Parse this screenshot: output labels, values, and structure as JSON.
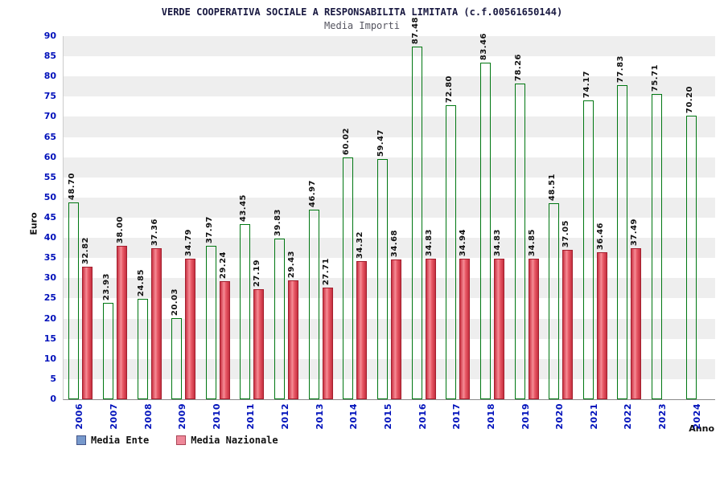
{
  "chart_data": {
    "type": "bar",
    "title": "VERDE COOPERATIVA SOCIALE A RESPONSABILITA LIMITATA (c.f.00561650144)",
    "subtitle": "Media Importi",
    "ylabel": "Euro",
    "xlabel": "Anno",
    "ylim": [
      0,
      90
    ],
    "ytick_step": 5,
    "grid": "horizontal-bands",
    "legend_position": "bottom-left",
    "categories": [
      "2006",
      "2007",
      "2008",
      "2009",
      "2010",
      "2011",
      "2012",
      "2013",
      "2014",
      "2015",
      "2016",
      "2017",
      "2018",
      "2019",
      "2020",
      "2021",
      "2022",
      "2023",
      "2024"
    ],
    "series": [
      {
        "name": "Media Ente",
        "bar_color": "#00c31f",
        "bar_edge_color": "#007712",
        "legend_swatch_color": "#7799cc",
        "legend_swatch_edge_color": "#445588",
        "values": [
          48.7,
          23.93,
          24.85,
          20.03,
          37.97,
          43.45,
          39.83,
          46.97,
          60.02,
          59.47,
          87.48,
          72.8,
          83.46,
          78.26,
          48.51,
          74.17,
          77.83,
          75.71,
          70.2
        ]
      },
      {
        "name": "Media Nazionale",
        "bar_color": "#ea5b68",
        "bar_edge_color": "#a31f2e",
        "legend_swatch_color": "#ee8899",
        "legend_swatch_edge_color": "#aa4455",
        "values": [
          32.82,
          38.0,
          37.36,
          34.79,
          29.24,
          27.19,
          29.43,
          27.71,
          34.32,
          34.68,
          34.83,
          34.94,
          34.83,
          34.85,
          37.05,
          36.46,
          37.49,
          null,
          null
        ]
      }
    ]
  }
}
